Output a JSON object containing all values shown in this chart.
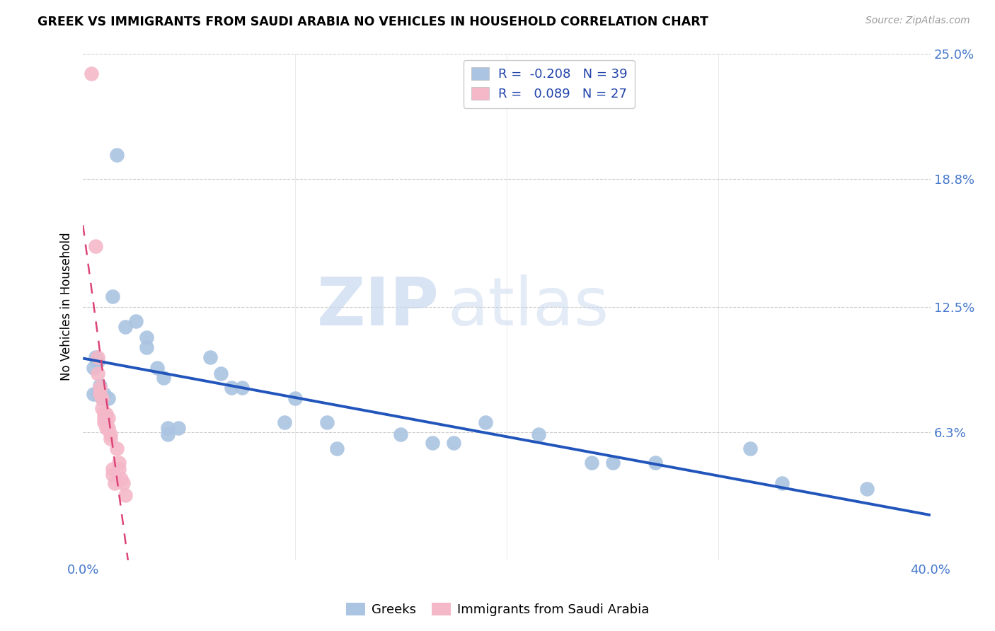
{
  "title": "GREEK VS IMMIGRANTS FROM SAUDI ARABIA NO VEHICLES IN HOUSEHOLD CORRELATION CHART",
  "source": "Source: ZipAtlas.com",
  "ylabel": "No Vehicles in Household",
  "xlim": [
    0.0,
    0.4
  ],
  "ylim": [
    0.0,
    0.25
  ],
  "greek_color": "#aac4e2",
  "saudi_color": "#f4b8c8",
  "greek_line_color": "#2255bb",
  "saudi_line_color": "#dd4477",
  "R_greek": -0.208,
  "N_greek": 39,
  "R_saudi": 0.089,
  "N_saudi": 27,
  "watermark_zip": "ZIP",
  "watermark_atlas": "atlas",
  "legend_labels": [
    "Greeks",
    "Immigrants from Saudi Arabia"
  ],
  "greek_points": [
    [
      0.005,
      0.095
    ],
    [
      0.005,
      0.082
    ],
    [
      0.006,
      0.1
    ],
    [
      0.007,
      0.098
    ],
    [
      0.007,
      0.082
    ],
    [
      0.008,
      0.086
    ],
    [
      0.009,
      0.08
    ],
    [
      0.01,
      0.082
    ],
    [
      0.012,
      0.08
    ],
    [
      0.014,
      0.13
    ],
    [
      0.016,
      0.2
    ],
    [
      0.02,
      0.115
    ],
    [
      0.025,
      0.118
    ],
    [
      0.03,
      0.11
    ],
    [
      0.03,
      0.105
    ],
    [
      0.035,
      0.095
    ],
    [
      0.038,
      0.09
    ],
    [
      0.04,
      0.065
    ],
    [
      0.04,
      0.062
    ],
    [
      0.045,
      0.065
    ],
    [
      0.06,
      0.1
    ],
    [
      0.065,
      0.092
    ],
    [
      0.07,
      0.085
    ],
    [
      0.075,
      0.085
    ],
    [
      0.095,
      0.068
    ],
    [
      0.1,
      0.08
    ],
    [
      0.115,
      0.068
    ],
    [
      0.12,
      0.055
    ],
    [
      0.15,
      0.062
    ],
    [
      0.165,
      0.058
    ],
    [
      0.175,
      0.058
    ],
    [
      0.19,
      0.068
    ],
    [
      0.215,
      0.062
    ],
    [
      0.24,
      0.048
    ],
    [
      0.25,
      0.048
    ],
    [
      0.27,
      0.048
    ],
    [
      0.315,
      0.055
    ],
    [
      0.33,
      0.038
    ],
    [
      0.37,
      0.035
    ]
  ],
  "saudi_points": [
    [
      0.004,
      0.24
    ],
    [
      0.006,
      0.155
    ],
    [
      0.007,
      0.1
    ],
    [
      0.007,
      0.092
    ],
    [
      0.008,
      0.085
    ],
    [
      0.008,
      0.082
    ],
    [
      0.009,
      0.08
    ],
    [
      0.009,
      0.075
    ],
    [
      0.01,
      0.072
    ],
    [
      0.01,
      0.07
    ],
    [
      0.01,
      0.068
    ],
    [
      0.011,
      0.072
    ],
    [
      0.011,
      0.068
    ],
    [
      0.011,
      0.065
    ],
    [
      0.012,
      0.07
    ],
    [
      0.012,
      0.065
    ],
    [
      0.013,
      0.06
    ],
    [
      0.013,
      0.062
    ],
    [
      0.014,
      0.045
    ],
    [
      0.014,
      0.042
    ],
    [
      0.015,
      0.038
    ],
    [
      0.016,
      0.055
    ],
    [
      0.017,
      0.048
    ],
    [
      0.017,
      0.045
    ],
    [
      0.018,
      0.04
    ],
    [
      0.019,
      0.038
    ],
    [
      0.02,
      0.032
    ]
  ]
}
